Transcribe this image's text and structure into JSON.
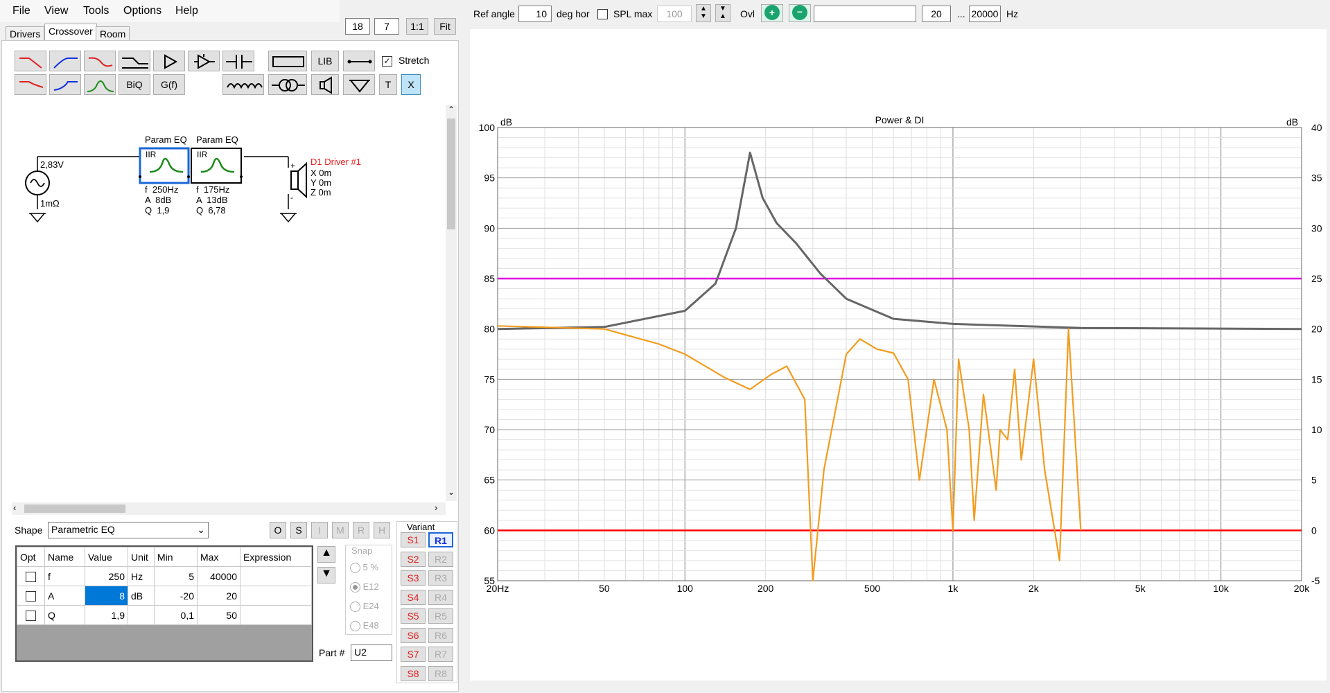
{
  "menu": [
    "File",
    "View",
    "Tools",
    "Options",
    "Help"
  ],
  "top_left_boxes": {
    "a": "18",
    "b": "7",
    "one_to_one": "1:1",
    "fit": "Fit"
  },
  "tabs": [
    "Drivers",
    "Crossover",
    "Room"
  ],
  "toolbar": {
    "lib": "LIB",
    "stretch": "Stretch",
    "biq": "BiQ",
    "gf": "G(f)",
    "t": "T",
    "x": "X"
  },
  "schematic": {
    "source_voltage": "2,83V",
    "source_impedance": "1mΩ",
    "blocks": [
      {
        "title": "Param EQ",
        "type": "IIR",
        "f": "f  250Hz",
        "a": "A  8dB",
        "q": "Q  1,9"
      },
      {
        "title": "Param EQ",
        "type": "IIR",
        "f": "f  175Hz",
        "a": "A  13dB",
        "q": "Q  6,78"
      }
    ],
    "driver": {
      "name": "D1 Driver #1",
      "x": "X 0m",
      "y": "Y 0m",
      "z": "Z 0m",
      "plus": "+",
      "minus": "-"
    }
  },
  "shape": {
    "label": "Shape",
    "value": "Parametric EQ",
    "buttons": [
      "O",
      "S",
      "I",
      "M",
      "R",
      "H"
    ]
  },
  "table": {
    "headers": [
      "Opt",
      "Name",
      "Value",
      "Unit",
      "Min",
      "Max",
      "Expression"
    ],
    "rows": [
      [
        "",
        "f",
        "250",
        "Hz",
        "5",
        "40000",
        ""
      ],
      [
        "",
        "A",
        "8",
        "dB",
        "-20",
        "20",
        ""
      ],
      [
        "",
        "Q",
        "1,9",
        "",
        "0,1",
        "50",
        ""
      ]
    ]
  },
  "snap": {
    "label": "Snap",
    "options": [
      "5 %",
      "E12",
      "E24",
      "E48"
    ]
  },
  "part": {
    "label": "Part #",
    "value": "U2"
  },
  "variant": {
    "label": "Variant",
    "s": [
      "S1",
      "S2",
      "S3",
      "S4",
      "S5",
      "S6",
      "S7",
      "S8"
    ],
    "r": [
      "R1",
      "R2",
      "R3",
      "R4",
      "R5",
      "R6",
      "R7",
      "R8"
    ]
  },
  "graph_toolbar": {
    "ref_angle_label": "Ref angle",
    "ref_angle": "10",
    "deg_hor": "deg hor",
    "spl_max_label": "SPL max",
    "spl_max": "100",
    "ovl": "Ovl",
    "fmin": "20",
    "dots": "...",
    "fmax": "20000",
    "hz": "Hz"
  },
  "chart_data": {
    "type": "line",
    "title": "Power & DI",
    "ylabel": "dB",
    "y2label": "dB",
    "xlim": [
      20,
      20000
    ],
    "xscale": "log",
    "ylim": [
      55,
      100
    ],
    "y2lim": [
      -5,
      40
    ],
    "x_ticks": [
      "20Hz",
      "50",
      "100",
      "200",
      "500",
      "1k",
      "2k",
      "5k",
      "10k",
      "20k"
    ],
    "y_ticks": [
      "100",
      "95",
      "90",
      "85",
      "80",
      "75",
      "70",
      "65",
      "60",
      "55"
    ],
    "y2_ticks": [
      "40",
      "35",
      "30",
      "25",
      "20",
      "15",
      "10",
      "5",
      "0",
      "-5"
    ],
    "series": [
      {
        "color": "#666666",
        "points": [
          [
            20,
            80
          ],
          [
            50,
            80.2
          ],
          [
            100,
            81.8
          ],
          [
            130,
            84.5
          ],
          [
            155,
            90
          ],
          [
            175,
            97.5
          ],
          [
            195,
            93
          ],
          [
            220,
            90.5
          ],
          [
            260,
            88.5
          ],
          [
            320,
            85.5
          ],
          [
            400,
            83
          ],
          [
            600,
            81
          ],
          [
            1000,
            80.5
          ],
          [
            3000,
            80.1
          ],
          [
            20000,
            80
          ]
        ]
      },
      {
        "color": "#f39c1e",
        "points": [
          [
            20,
            80.3
          ],
          [
            50,
            80
          ],
          [
            80,
            78.5
          ],
          [
            100,
            77.5
          ],
          [
            140,
            75.2
          ],
          [
            175,
            74
          ],
          [
            210,
            75.5
          ],
          [
            240,
            76.3
          ],
          [
            280,
            73
          ],
          [
            300,
            55
          ],
          [
            330,
            66
          ],
          [
            400,
            77.5
          ],
          [
            450,
            79
          ],
          [
            520,
            78
          ],
          [
            600,
            77.6
          ],
          [
            680,
            75
          ],
          [
            750,
            65
          ],
          [
            850,
            75
          ],
          [
            950,
            70
          ],
          [
            1000,
            60
          ],
          [
            1050,
            77
          ],
          [
            1150,
            70
          ],
          [
            1200,
            61
          ],
          [
            1300,
            73.5
          ],
          [
            1450,
            64
          ],
          [
            1500,
            70
          ],
          [
            1600,
            69
          ],
          [
            1700,
            76
          ],
          [
            1800,
            67
          ],
          [
            2000,
            77
          ],
          [
            2200,
            66
          ],
          [
            2500,
            57
          ],
          [
            2700,
            80
          ],
          [
            3000,
            60
          ]
        ]
      }
    ],
    "lines": [
      {
        "color": "#e000e0",
        "value": 85
      },
      {
        "color": "#ff0000",
        "value": 60
      }
    ]
  },
  "colors": {
    "magenta": "#e000e0",
    "red": "#ff0000",
    "orange": "#f39c1e",
    "gray": "#666666",
    "accent_blue": "#0066cc"
  }
}
